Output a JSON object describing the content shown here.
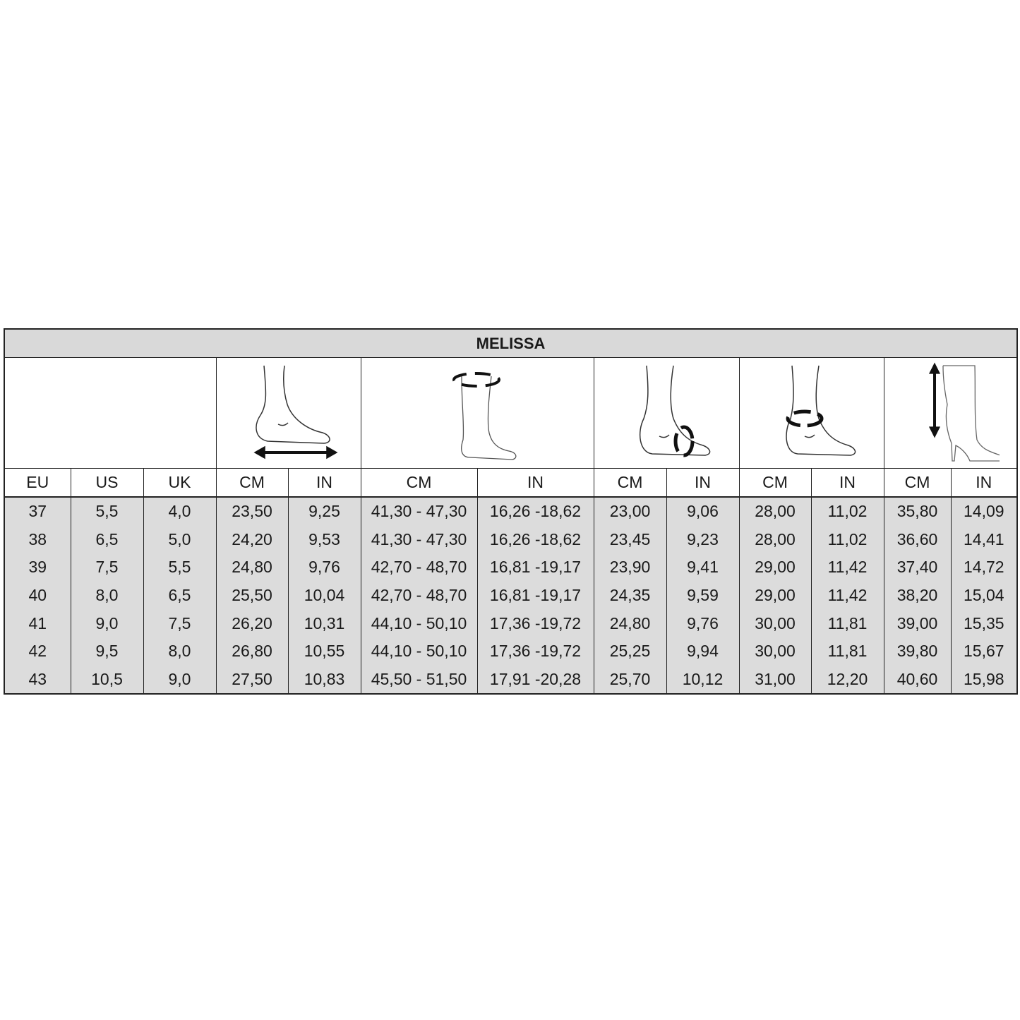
{
  "title": "MELISSA",
  "icons": [
    "foot-length-icon",
    "calf-circumference-icon",
    "instep-circumference-icon",
    "ankle-circumference-icon",
    "shaft-height-icon"
  ],
  "headers": [
    "EU",
    "US",
    "UK",
    "CM",
    "IN",
    "CM",
    "IN",
    "CM",
    "IN",
    "CM",
    "IN",
    "CM",
    "IN"
  ],
  "rows": [
    [
      "37",
      "5,5",
      "4,0",
      "23,50",
      "9,25",
      "41,30 - 47,30",
      "16,26 -18,62",
      "23,00",
      "9,06",
      "28,00",
      "11,02",
      "35,80",
      "14,09"
    ],
    [
      "38",
      "6,5",
      "5,0",
      "24,20",
      "9,53",
      "41,30 - 47,30",
      "16,26 -18,62",
      "23,45",
      "9,23",
      "28,00",
      "11,02",
      "36,60",
      "14,41"
    ],
    [
      "39",
      "7,5",
      "5,5",
      "24,80",
      "9,76",
      "42,70 - 48,70",
      "16,81 -19,17",
      "23,90",
      "9,41",
      "29,00",
      "11,42",
      "37,40",
      "14,72"
    ],
    [
      "40",
      "8,0",
      "6,5",
      "25,50",
      "10,04",
      "42,70 - 48,70",
      "16,81 -19,17",
      "24,35",
      "9,59",
      "29,00",
      "11,42",
      "38,20",
      "15,04"
    ],
    [
      "41",
      "9,0",
      "7,5",
      "26,20",
      "10,31",
      "44,10 - 50,10",
      "17,36 -19,72",
      "24,80",
      "9,76",
      "30,00",
      "11,81",
      "39,00",
      "15,35"
    ],
    [
      "42",
      "9,5",
      "8,0",
      "26,80",
      "10,55",
      "44,10 - 50,10",
      "17,36 -19,72",
      "25,25",
      "9,94",
      "30,00",
      "11,81",
      "39,80",
      "15,67"
    ],
    [
      "43",
      "10,5",
      "9,0",
      "27,50",
      "10,83",
      "45,50 - 51,50",
      "17,91 -20,28",
      "25,70",
      "10,12",
      "31,00",
      "12,20",
      "40,60",
      "15,98"
    ]
  ]
}
